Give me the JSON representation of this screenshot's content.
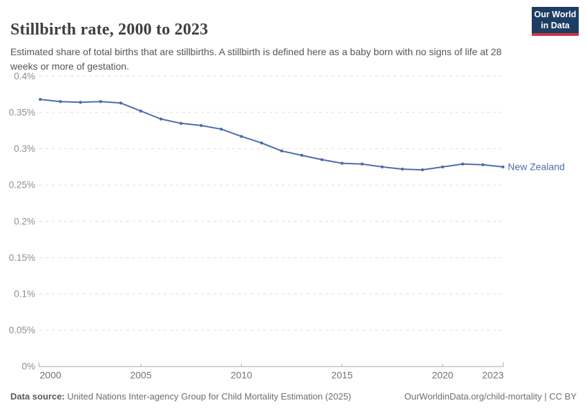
{
  "header": {
    "title": "Stillbirth rate, 2000 to 2023",
    "subtitle": "Estimated share of total births that are stillbirths. A stillbirth is defined here as a baby born with no signs of life at 28 weeks or more of gestation.",
    "logo": {
      "line1": "Our World",
      "line2": "in Data"
    }
  },
  "chart_data": {
    "type": "line",
    "title": "Stillbirth rate, 2000 to 2023",
    "x": [
      2000,
      2001,
      2002,
      2003,
      2004,
      2005,
      2006,
      2007,
      2008,
      2009,
      2010,
      2011,
      2012,
      2013,
      2014,
      2015,
      2016,
      2017,
      2018,
      2019,
      2020,
      2021,
      2022,
      2023
    ],
    "series": [
      {
        "name": "New Zealand",
        "unit": "%",
        "values": [
          0.368,
          0.365,
          0.364,
          0.365,
          0.363,
          0.352,
          0.341,
          0.335,
          0.332,
          0.327,
          0.317,
          0.308,
          0.297,
          0.291,
          0.285,
          0.28,
          0.279,
          0.275,
          0.272,
          0.271,
          0.275,
          0.279,
          0.278,
          0.275
        ]
      }
    ],
    "xlim": [
      2000,
      2023
    ],
    "ylim": [
      0,
      0.4
    ],
    "x_ticks": [
      2000,
      2005,
      2010,
      2015,
      2020,
      2023
    ],
    "y_ticks": [
      {
        "value": 0,
        "label": "0%"
      },
      {
        "value": 0.05,
        "label": "0.05%"
      },
      {
        "value": 0.1,
        "label": "0.1%"
      },
      {
        "value": 0.15,
        "label": "0.15%"
      },
      {
        "value": 0.2,
        "label": "0.2%"
      },
      {
        "value": 0.25,
        "label": "0.25%"
      },
      {
        "value": 0.3,
        "label": "0.3%"
      },
      {
        "value": 0.35,
        "label": "0.35%"
      },
      {
        "value": 0.4,
        "label": "0.4%"
      }
    ],
    "grid": "horizontal-dashed",
    "legend": "end-of-line-label"
  },
  "footer": {
    "source_label": "Data source:",
    "source_text": "United Nations Inter-agency Group for Child Mortality Estimation (2025)",
    "link_text": "OurWorldinData.org/child-mortality | CC BY"
  },
  "colors": {
    "line": "#4C6CAE",
    "logo_bg": "#1D3D63",
    "logo_stripe": "#D0353F",
    "grid": "#DDDDDD",
    "axis": "#A8A8A8",
    "title_text": "#3F3F3F",
    "subtitle_text": "#555555",
    "y_tick_text": "#8F8F8F",
    "x_tick_text": "#737373",
    "footer_text": "#6E6E6E",
    "footer_label_text": "#5A5A5A"
  }
}
